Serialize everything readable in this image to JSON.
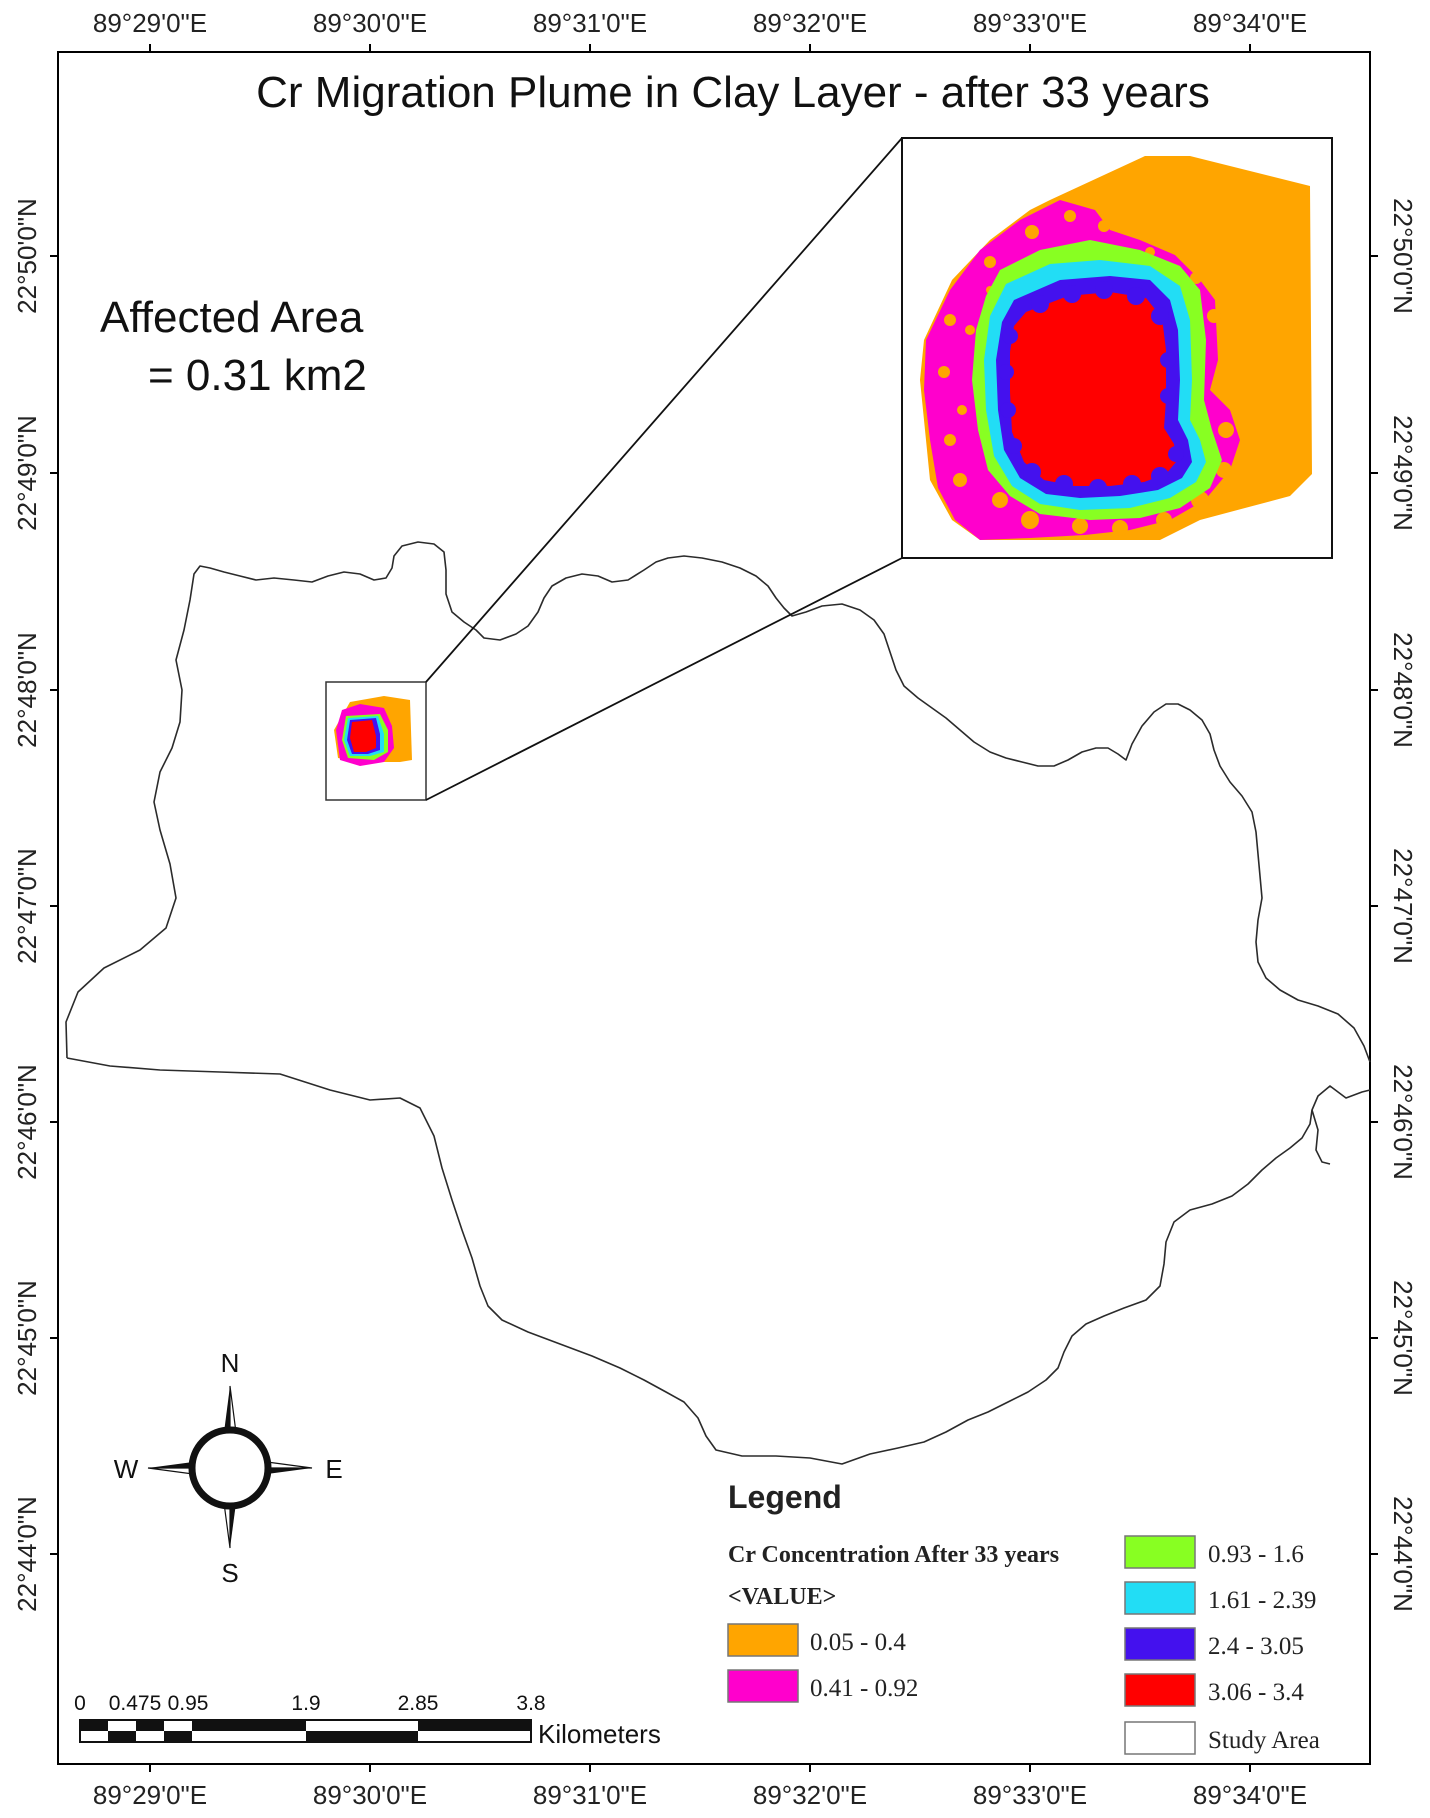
{
  "title": "Cr Migration Plume in Clay Layer - after 33 years",
  "affected_area": {
    "line1": "Affected Area",
    "line2": "= 0.31 km2"
  },
  "graticule": {
    "longitudes": [
      "89°29'0\"E",
      "89°30'0\"E",
      "89°31'0\"E",
      "89°32'0\"E",
      "89°33'0\"E",
      "89°34'0\"E"
    ],
    "latitudes": [
      "22°50'0\"N",
      "22°49'0\"N",
      "22°48'0\"N",
      "22°47'0\"N",
      "22°46'0\"N",
      "22°45'0\"N",
      "22°44'0\"N"
    ]
  },
  "compass": {
    "north": "N",
    "south": "S",
    "east": "E",
    "west": "W"
  },
  "legend": {
    "title": "Legend",
    "subtitle": "Cr Concentration After 33 years",
    "value_label": "<VALUE>",
    "classes": [
      {
        "label": "0.05 - 0.4",
        "color": "#FFA500"
      },
      {
        "label": "0.41 - 0.92",
        "color": "#FF00CC"
      },
      {
        "label": "0.93 - 1.6",
        "color": "#88FF22"
      },
      {
        "label": "1.61 - 2.39",
        "color": "#22DDF5"
      },
      {
        "label": "2.4 - 3.05",
        "color": "#4411EE"
      },
      {
        "label": "3.06 - 3.4",
        "color": "#FF0000"
      }
    ],
    "study_area_label": "Study Area"
  },
  "scale_bar": {
    "labels": [
      "0",
      "0.475",
      "0.95",
      "1.9",
      "2.85",
      "3.8"
    ],
    "unit": "Kilometers"
  }
}
